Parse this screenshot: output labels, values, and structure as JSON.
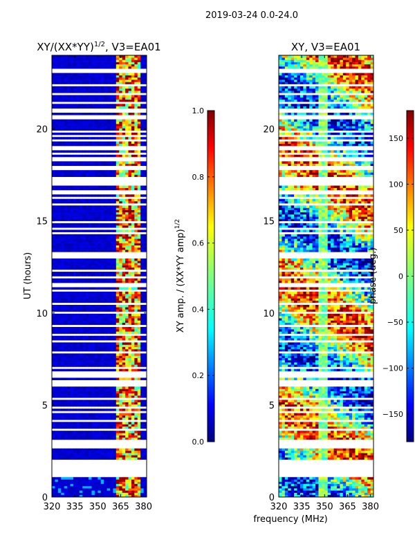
{
  "figure_title": "2019-03-24 0.0-24.0",
  "shared_xlabel": "frequency (MHz)",
  "chart_data": [
    {
      "type": "heatmap",
      "title_prefix": "XY/(XX*YY)",
      "title_exponent": "1/2",
      "title_suffix": ", V3=EA01",
      "xlabel": "",
      "ylabel": "UT (hours)",
      "xlim": [
        320,
        382
      ],
      "ylim": [
        0,
        24
      ],
      "xticks": [
        320,
        335,
        350,
        365,
        380
      ],
      "yticks": [
        0,
        5,
        10,
        15,
        20
      ],
      "colorbar": {
        "label_text": "XY amp. / (XX*YY amp)",
        "label_exponent": "1/2",
        "range": [
          0.0,
          1.0
        ],
        "ticks": [
          "0.0",
          "0.2",
          "0.4",
          "0.6",
          "0.8",
          "1.0"
        ],
        "cmap": "jet"
      },
      "dominant_value": 0.05,
      "rfi_band_mhz": [
        362,
        378
      ],
      "rfi_value_range": [
        0.4,
        0.9
      ]
    },
    {
      "type": "heatmap",
      "title": "XY, V3=EA01",
      "xlabel": "",
      "ylabel": "",
      "xlim": [
        320,
        382
      ],
      "ylim": [
        0,
        24
      ],
      "xticks": [
        320,
        335,
        350,
        365,
        380
      ],
      "yticks": [
        0,
        5,
        10,
        15,
        20
      ],
      "colorbar": {
        "label_text": "phase (deg.)",
        "range": [
          -180,
          180
        ],
        "ticks": [
          "−150",
          "−100",
          "−50",
          "0",
          "50",
          "100",
          "150"
        ],
        "cmap": "jet"
      },
      "value_range": [
        -180,
        180
      ]
    }
  ],
  "colors": {
    "jet": [
      "#00007f",
      "#0000ff",
      "#007fff",
      "#00ffff",
      "#7fff7f",
      "#ffff00",
      "#ff7f00",
      "#ff0000",
      "#7f0000"
    ],
    "background": "#ffffff",
    "axis": "#000000"
  }
}
